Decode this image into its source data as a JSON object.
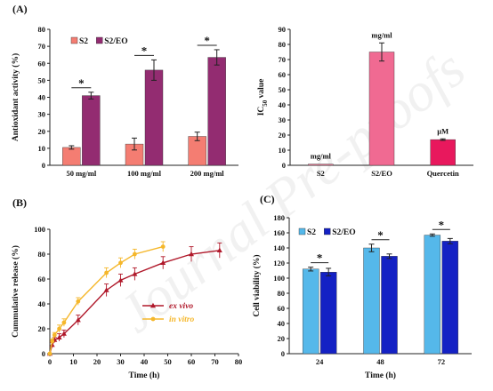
{
  "watermark": "Journal Pre-proofs",
  "chart_data": [
    {
      "panel": "(A)",
      "type": "bar",
      "categories": [
        "50 mg/ml",
        "100 mg/ml",
        "200 mg/ml"
      ],
      "series": [
        {
          "name": "S2",
          "color": "#f47d72",
          "values": [
            10.5,
            12.5,
            17
          ],
          "errors": [
            1,
            3.5,
            2.5
          ]
        },
        {
          "name": "S2/EO",
          "color": "#932c71",
          "values": [
            41,
            56,
            63.5
          ],
          "errors": [
            2,
            6,
            4.5
          ]
        }
      ],
      "significance": [
        "*",
        "*",
        "*"
      ],
      "ylabel": "Antioxidant activity (%)",
      "ylim": [
        0,
        80
      ],
      "yticks": [
        0,
        10,
        20,
        30,
        40,
        50,
        60,
        70,
        80
      ],
      "legend_position": "top-left"
    },
    {
      "panel": "",
      "type": "bar",
      "categories": [
        "S2",
        "S2/EO",
        "Quercetin"
      ],
      "values": [
        0.8,
        75,
        17
      ],
      "errors": [
        0,
        6,
        0.5
      ],
      "colors": [
        "#f07c9c",
        "#f06a92",
        "#e8185d"
      ],
      "bar_labels": [
        "mg/ml",
        "mg/ml",
        "µM"
      ],
      "ylabel_main": "IC",
      "ylabel_sub": "50",
      "ylabel_rest": " value",
      "ylim": [
        0,
        90
      ],
      "yticks": [
        0,
        10,
        20,
        30,
        40,
        50,
        60,
        70,
        80,
        90
      ]
    },
    {
      "panel": "(B)",
      "type": "line",
      "xlabel": "Time (h)",
      "ylabel": "Cummulative release (%)",
      "xlim": [
        0,
        80
      ],
      "xticks": [
        0,
        10,
        20,
        30,
        40,
        50,
        60,
        70,
        80
      ],
      "ylim": [
        0,
        100
      ],
      "yticks": [
        0,
        20,
        40,
        60,
        80,
        100
      ],
      "legend_position": "center-right",
      "series": [
        {
          "name": "ex vivo",
          "color": "#b0182a",
          "marker": "triangle",
          "x": [
            0,
            1,
            2,
            4,
            6,
            12,
            24,
            30,
            36,
            48,
            60,
            72
          ],
          "y": [
            0,
            7,
            11,
            13,
            16,
            27,
            51,
            59,
            64,
            73,
            80,
            83
          ],
          "errors": [
            0,
            2,
            2,
            3,
            3,
            4,
            5,
            5,
            5,
            5,
            6,
            6
          ]
        },
        {
          "name": "in vitro",
          "color": "#f5b72b",
          "marker": "circle",
          "x": [
            0,
            1,
            2,
            4,
            6,
            12,
            24,
            30,
            36,
            48
          ],
          "y": [
            0,
            10,
            15,
            20,
            25,
            42,
            65,
            73,
            80,
            86
          ],
          "errors": [
            0,
            2,
            2,
            3,
            3,
            3,
            4,
            4,
            4,
            4
          ]
        }
      ]
    },
    {
      "panel": "(C)",
      "type": "bar",
      "categories": [
        "24",
        "48",
        "72"
      ],
      "series": [
        {
          "name": "S2",
          "color": "#55b8ea",
          "values": [
            112,
            140,
            157
          ],
          "errors": [
            2.5,
            5,
            1.5
          ]
        },
        {
          "name": "S2/EO",
          "color": "#1421c4",
          "values": [
            108,
            129,
            149
          ],
          "errors": [
            5,
            3,
            3.5
          ]
        }
      ],
      "significance": [
        "*",
        "*",
        "*"
      ],
      "xlabel": "Time (h)",
      "ylabel": "Cell viability (%)",
      "ylim": [
        0,
        180
      ],
      "yticks": [
        0,
        20,
        40,
        60,
        80,
        100,
        120,
        140,
        160,
        180
      ],
      "legend_position": "top-left"
    }
  ]
}
